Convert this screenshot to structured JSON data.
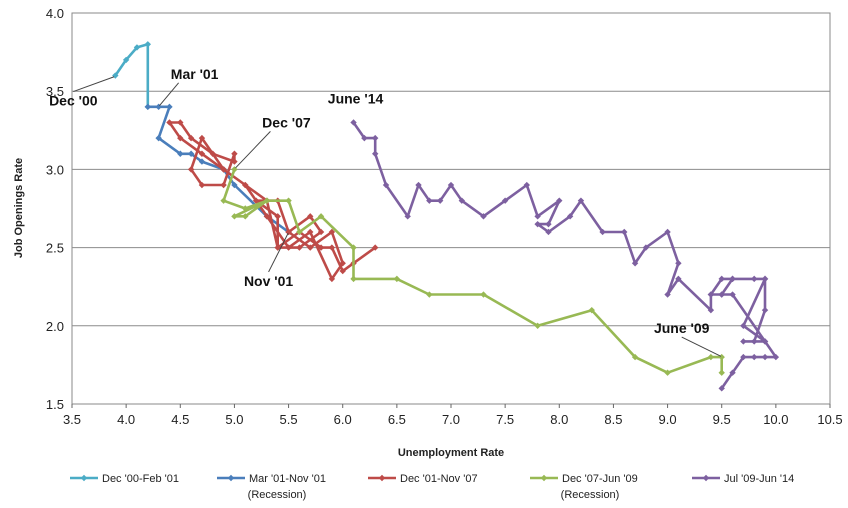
{
  "chart_data": {
    "type": "line",
    "xlabel": "Unemployment Rate",
    "ylabel": "Job Openings Rate",
    "xlim": [
      3.5,
      10.5
    ],
    "ylim": [
      1.5,
      4.0
    ],
    "x_ticks": [
      "3.5",
      "4.0",
      "4.5",
      "5.0",
      "5.5",
      "6.0",
      "6.5",
      "7.0",
      "7.5",
      "8.0",
      "8.5",
      "9.0",
      "9.5",
      "10.0",
      "10.5"
    ],
    "y_ticks": [
      "1.5",
      "2.0",
      "2.5",
      "3.0",
      "3.5",
      "4.0"
    ],
    "grid": "horizontal",
    "legend_position": "bottom",
    "series": [
      {
        "name": "Dec '00-Feb '01",
        "note": "",
        "color": "#4bacc6",
        "points": [
          [
            3.9,
            3.6
          ],
          [
            4.0,
            3.7
          ],
          [
            4.1,
            3.78
          ],
          [
            4.2,
            3.8
          ],
          [
            4.2,
            3.4
          ]
        ]
      },
      {
        "name": "Mar '01-Nov '01",
        "note": "(Recession)",
        "color": "#4a7ebb",
        "points": [
          [
            4.2,
            3.4
          ],
          [
            4.3,
            3.4
          ],
          [
            4.4,
            3.4
          ],
          [
            4.3,
            3.2
          ],
          [
            4.5,
            3.1
          ],
          [
            4.6,
            3.1
          ],
          [
            4.7,
            3.05
          ],
          [
            4.9,
            3.0
          ],
          [
            5.0,
            2.9
          ],
          [
            5.3,
            2.7
          ],
          [
            5.5,
            2.6
          ]
        ]
      },
      {
        "name": "Dec '01-Nov '07",
        "note": "",
        "color": "#be4b48",
        "points": [
          [
            5.5,
            2.6
          ],
          [
            5.7,
            2.7
          ],
          [
            5.8,
            2.6
          ],
          [
            5.6,
            2.5
          ],
          [
            5.4,
            2.5
          ],
          [
            5.4,
            2.7
          ],
          [
            5.2,
            2.8
          ],
          [
            5.4,
            2.8
          ],
          [
            5.5,
            2.6
          ],
          [
            5.7,
            2.5
          ],
          [
            5.9,
            2.6
          ],
          [
            6.0,
            2.4
          ],
          [
            5.9,
            2.3
          ],
          [
            5.7,
            2.6
          ],
          [
            5.5,
            2.5
          ],
          [
            5.3,
            2.7
          ],
          [
            5.1,
            2.9
          ],
          [
            4.9,
            3.0
          ],
          [
            4.7,
            3.1
          ],
          [
            4.5,
            3.2
          ],
          [
            4.4,
            3.3
          ],
          [
            4.5,
            3.3
          ],
          [
            4.6,
            3.2
          ],
          [
            4.8,
            3.1
          ],
          [
            5.0,
            3.05
          ],
          [
            5.0,
            3.1
          ],
          [
            4.9,
            2.9
          ],
          [
            4.7,
            2.9
          ],
          [
            4.6,
            3.0
          ],
          [
            4.7,
            3.2
          ],
          [
            4.9,
            3.0
          ],
          [
            5.1,
            2.9
          ],
          [
            5.3,
            2.8
          ],
          [
            5.4,
            2.5
          ],
          [
            5.6,
            2.6
          ],
          [
            5.8,
            2.5
          ],
          [
            5.9,
            2.5
          ],
          [
            6.0,
            2.35
          ],
          [
            6.1,
            2.4
          ],
          [
            6.3,
            2.5
          ]
        ]
      },
      {
        "name": "Dec '07-Jun '09",
        "note": "(Recession)",
        "color": "#98b954",
        "points": [
          [
            5.0,
            3.0
          ],
          [
            4.9,
            2.8
          ],
          [
            5.1,
            2.75
          ],
          [
            5.3,
            2.8
          ],
          [
            5.1,
            2.7
          ],
          [
            5.0,
            2.7
          ],
          [
            5.3,
            2.8
          ],
          [
            5.5,
            2.8
          ],
          [
            5.6,
            2.6
          ],
          [
            5.8,
            2.7
          ],
          [
            6.1,
            2.5
          ],
          [
            6.1,
            2.3
          ],
          [
            6.5,
            2.3
          ],
          [
            6.8,
            2.2
          ],
          [
            7.3,
            2.2
          ],
          [
            7.8,
            2.0
          ],
          [
            8.3,
            2.1
          ],
          [
            8.7,
            1.8
          ],
          [
            9.0,
            1.7
          ],
          [
            9.4,
            1.8
          ],
          [
            9.5,
            1.8
          ],
          [
            9.5,
            1.7
          ]
        ]
      },
      {
        "name": "Jul '09-Jun '14",
        "note": "",
        "color": "#7d60a0",
        "points": [
          [
            9.5,
            1.6
          ],
          [
            9.6,
            1.7
          ],
          [
            9.7,
            1.8
          ],
          [
            9.8,
            1.8
          ],
          [
            9.9,
            1.8
          ],
          [
            10.0,
            1.8
          ],
          [
            9.9,
            1.9
          ],
          [
            9.7,
            1.9
          ],
          [
            9.8,
            1.9
          ],
          [
            9.9,
            2.1
          ],
          [
            9.9,
            2.3
          ],
          [
            9.6,
            2.3
          ],
          [
            9.5,
            2.2
          ],
          [
            9.4,
            2.2
          ],
          [
            9.5,
            2.3
          ],
          [
            9.6,
            2.3
          ],
          [
            9.8,
            2.3
          ],
          [
            9.9,
            2.3
          ],
          [
            9.7,
            2.0
          ],
          [
            9.9,
            1.9
          ],
          [
            9.6,
            2.2
          ],
          [
            9.5,
            2.2
          ],
          [
            9.4,
            2.2
          ],
          [
            9.4,
            2.1
          ],
          [
            9.1,
            2.3
          ],
          [
            9.0,
            2.2
          ],
          [
            9.1,
            2.4
          ],
          [
            9.0,
            2.6
          ],
          [
            8.8,
            2.5
          ],
          [
            8.7,
            2.4
          ],
          [
            8.6,
            2.6
          ],
          [
            8.4,
            2.6
          ],
          [
            8.2,
            2.8
          ],
          [
            8.1,
            2.7
          ],
          [
            7.9,
            2.6
          ],
          [
            7.8,
            2.65
          ],
          [
            7.9,
            2.65
          ],
          [
            8.0,
            2.8
          ],
          [
            7.8,
            2.7
          ],
          [
            7.7,
            2.9
          ],
          [
            7.5,
            2.8
          ],
          [
            7.3,
            2.7
          ],
          [
            7.1,
            2.8
          ],
          [
            7.0,
            2.9
          ],
          [
            6.9,
            2.8
          ],
          [
            6.8,
            2.8
          ],
          [
            6.7,
            2.9
          ],
          [
            6.6,
            2.7
          ],
          [
            6.4,
            2.9
          ],
          [
            6.3,
            3.1
          ],
          [
            6.3,
            3.2
          ],
          [
            6.2,
            3.2
          ],
          [
            6.1,
            3.3
          ]
        ]
      }
    ],
    "annotations": [
      {
        "text": "Dec '00",
        "x": 3.9,
        "y": 3.6
      },
      {
        "text": "Mar '01",
        "x": 4.3,
        "y": 3.4
      },
      {
        "text": "Dec '07",
        "x": 5.0,
        "y": 3.0
      },
      {
        "text": "Nov '01",
        "x": 5.5,
        "y": 2.6
      },
      {
        "text": "June '14",
        "x": 6.1,
        "y": 3.3
      },
      {
        "text": "June '09",
        "x": 9.5,
        "y": 1.8
      }
    ]
  }
}
